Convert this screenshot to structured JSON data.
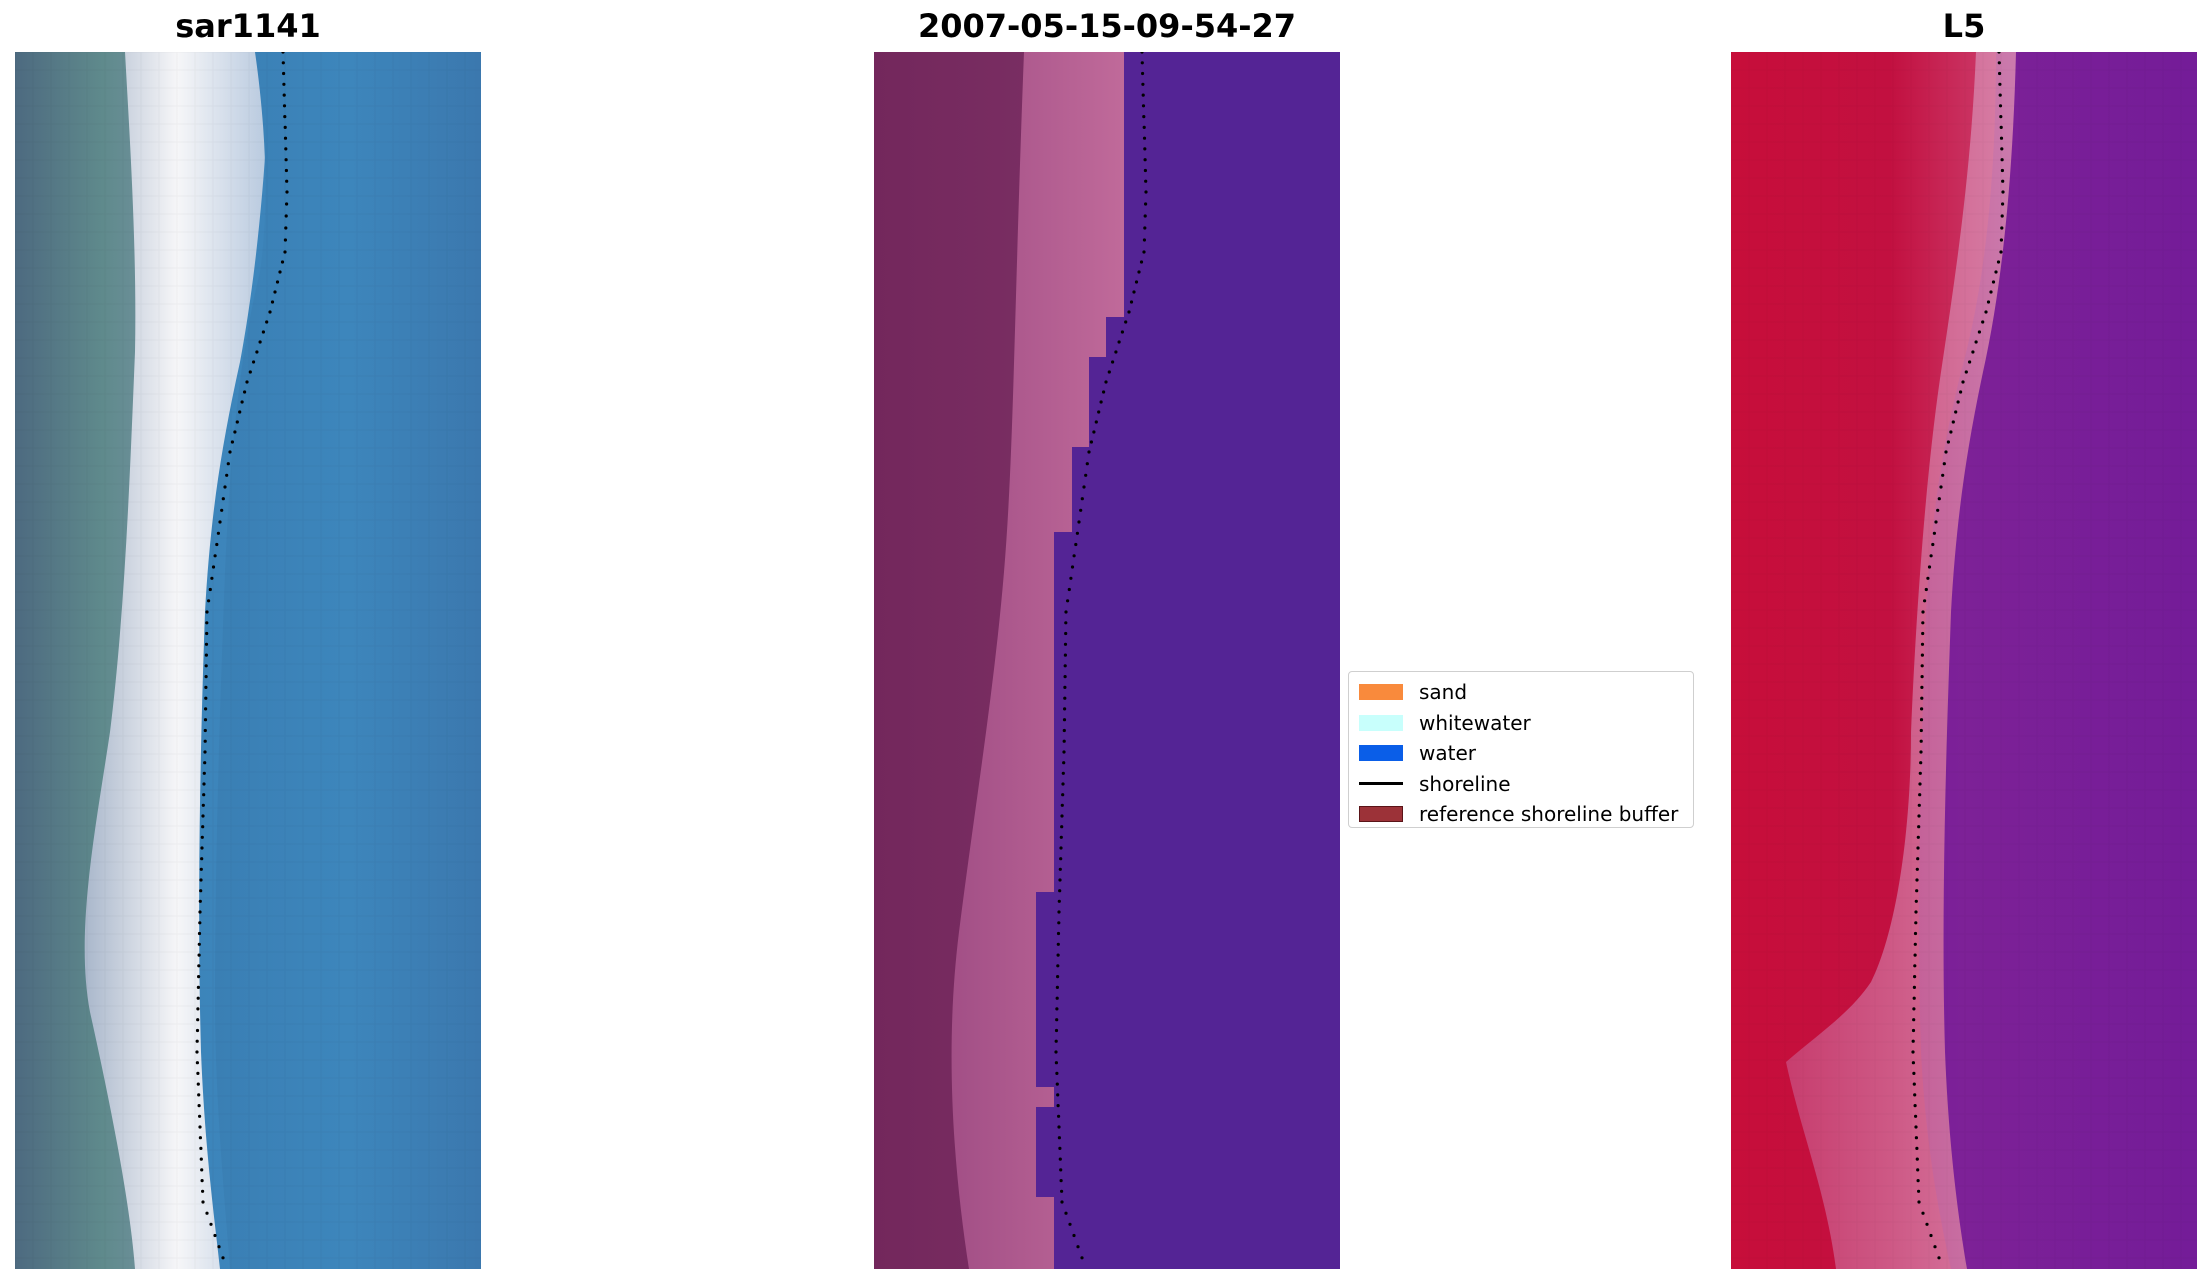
{
  "panels": [
    {
      "title": "sar1141",
      "kind": "rgb"
    },
    {
      "title": "2007-05-15-09-54-27",
      "kind": "classified"
    },
    {
      "title": "L5",
      "kind": "false-color"
    }
  ],
  "legend": {
    "items": [
      {
        "label": "sand",
        "color": "#f98a3c",
        "type": "patch"
      },
      {
        "label": "whitewater",
        "color": "#c8fffc",
        "type": "patch"
      },
      {
        "label": "water",
        "color": "#0a5ee8",
        "type": "patch"
      },
      {
        "label": "shoreline",
        "color": "#000000",
        "type": "line"
      },
      {
        "label": "reference shoreline buffer",
        "color": "#9c3238",
        "edge": "#5a1418",
        "type": "patch"
      }
    ]
  },
  "colors": {
    "rgb_land": "#5c7f8a",
    "rgb_whitewater": "#f2f2f6",
    "rgb_water": "#3a82b8",
    "classified_land": "#7a2f62",
    "classified_buffer": "#b35a90",
    "classified_water": "#542495",
    "fc_land": "#c3103a",
    "fc_buffer": "#d46a98",
    "fc_water": "#7a1a9a",
    "shoreline_dots": "#000000"
  }
}
